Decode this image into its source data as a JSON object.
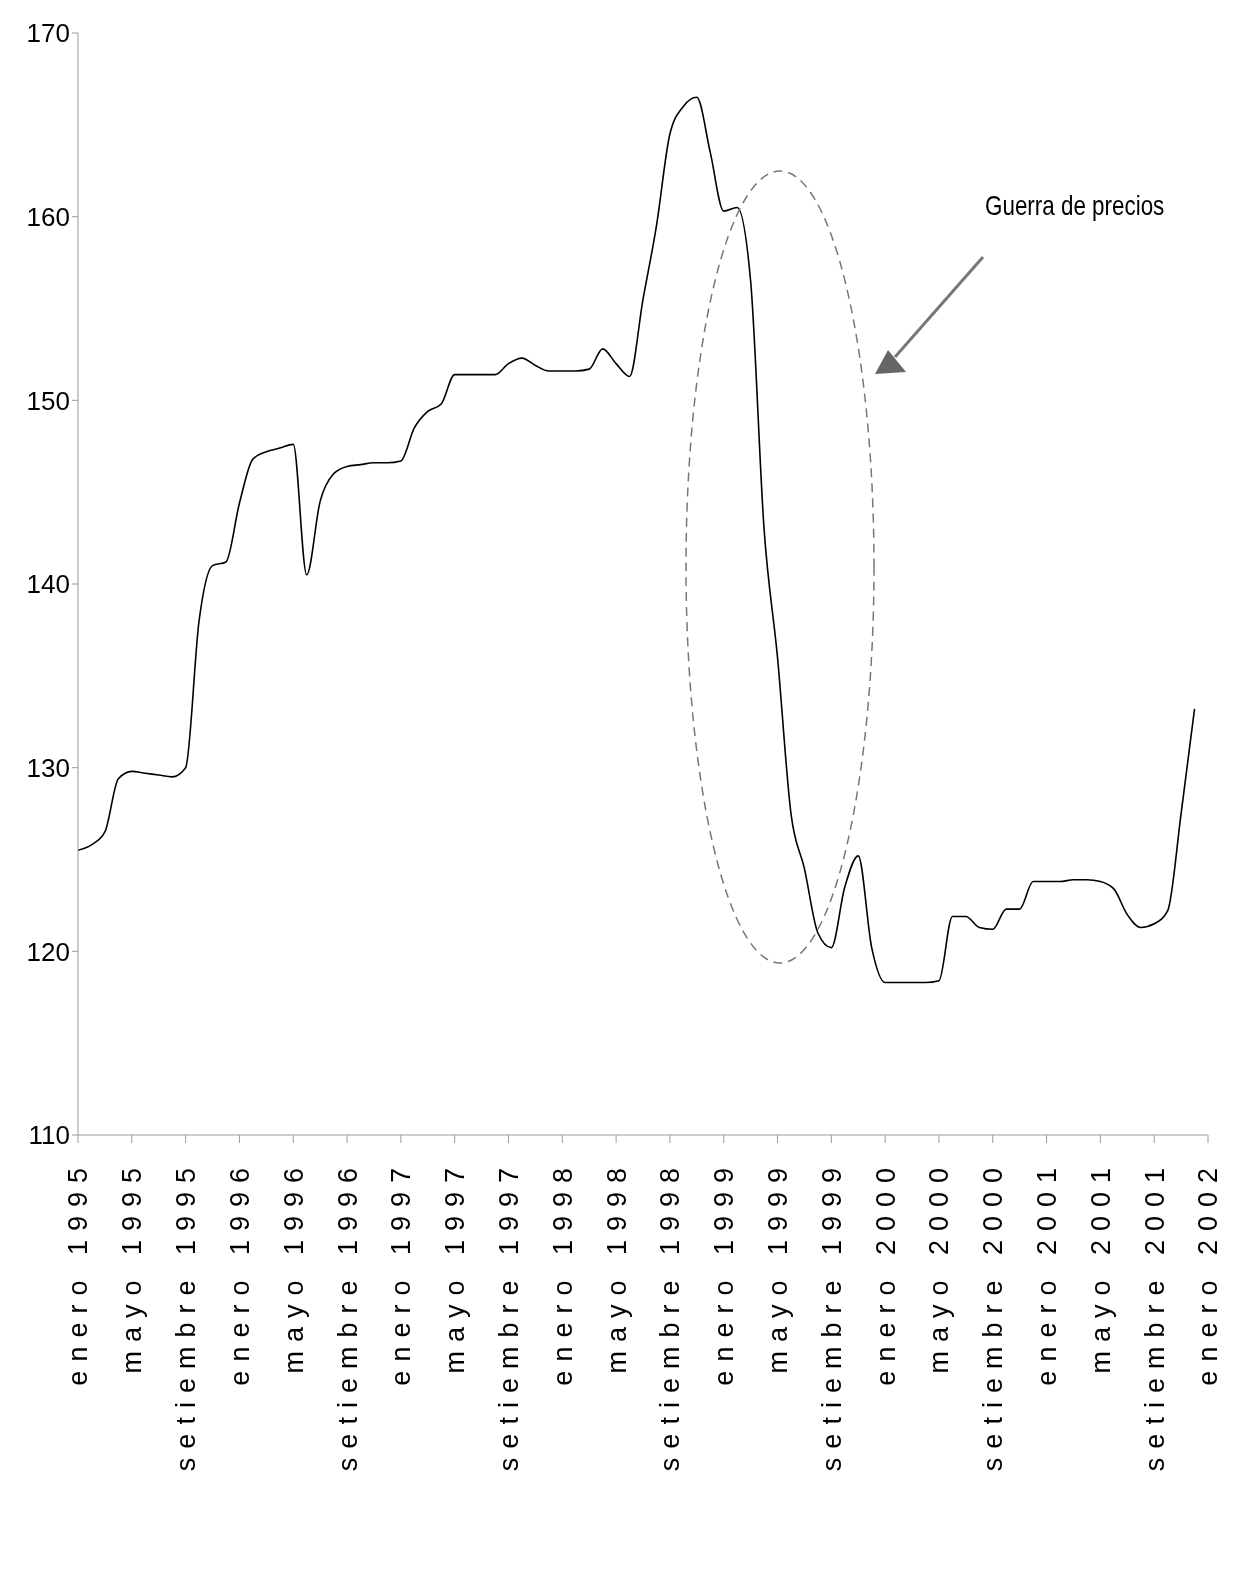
{
  "chart_data": {
    "type": "line",
    "categories": [
      "enero 1995",
      null,
      null,
      null,
      "mayo 1995",
      null,
      null,
      null,
      "setiembre 1995",
      null,
      null,
      null,
      "enero 1996",
      null,
      null,
      null,
      "mayo 1996",
      null,
      null,
      null,
      "setiembre 1996",
      null,
      null,
      null,
      "enero 1997",
      null,
      null,
      null,
      "mayo 1997",
      null,
      null,
      null,
      "setiembre 1997",
      null,
      null,
      null,
      "enero 1998",
      null,
      null,
      null,
      "mayo 1998",
      null,
      null,
      null,
      "setiembre 1998",
      null,
      null,
      null,
      "enero 1999",
      null,
      null,
      null,
      "mayo 1999",
      null,
      null,
      null,
      "setiembre 1999",
      null,
      null,
      null,
      "enero 2000",
      null,
      null,
      null,
      "mayo 2000",
      null,
      null,
      null,
      "setiembre 2000",
      null,
      null,
      null,
      "enero 2001",
      null,
      null,
      null,
      "mayo 2001",
      null,
      null,
      null,
      "setiembre 2001",
      null,
      null,
      null,
      "enero 2002"
    ],
    "series": [
      {
        "color": "#000000",
        "values": [
          125.5,
          125.8,
          126.5,
          129.4,
          129.8,
          129.7,
          129.6,
          129.5,
          130.0,
          138,
          141.0,
          141.2,
          144.4,
          146.8,
          147.2,
          147.4,
          147.6,
          140.5,
          144.5,
          146.0,
          146.4,
          146.5,
          146.6,
          146.6,
          146.7,
          148.5,
          149.4,
          149.8,
          151.4,
          151.4,
          151.4,
          151.4,
          152.0,
          152.3,
          151.9,
          151.6,
          151.6,
          151.6,
          151.7,
          152.8,
          152.0,
          151.3,
          155.5,
          159.5,
          164.5,
          166.0,
          166.5,
          163.5,
          160.3,
          160.5,
          156.5,
          143,
          136,
          127.5,
          124.5,
          121,
          120.2,
          123.5,
          125.2,
          120.2,
          118.3,
          118.3,
          118.3,
          118.3,
          118.4,
          121.9,
          121.9,
          121.3,
          121.2,
          122.3,
          122.3,
          123.8,
          123.8,
          123.8,
          123.9,
          123.9,
          123.8,
          123.4,
          122.0,
          121.3,
          121.5,
          122.2,
          127.5,
          133.2,
          null
        ]
      }
    ],
    "ylim": [
      110,
      170
    ],
    "yticks": [
      110,
      120,
      130,
      140,
      150,
      160,
      170
    ],
    "annotations": [
      "Guerra de precios"
    ],
    "marker": "none",
    "line_style": "solid"
  }
}
